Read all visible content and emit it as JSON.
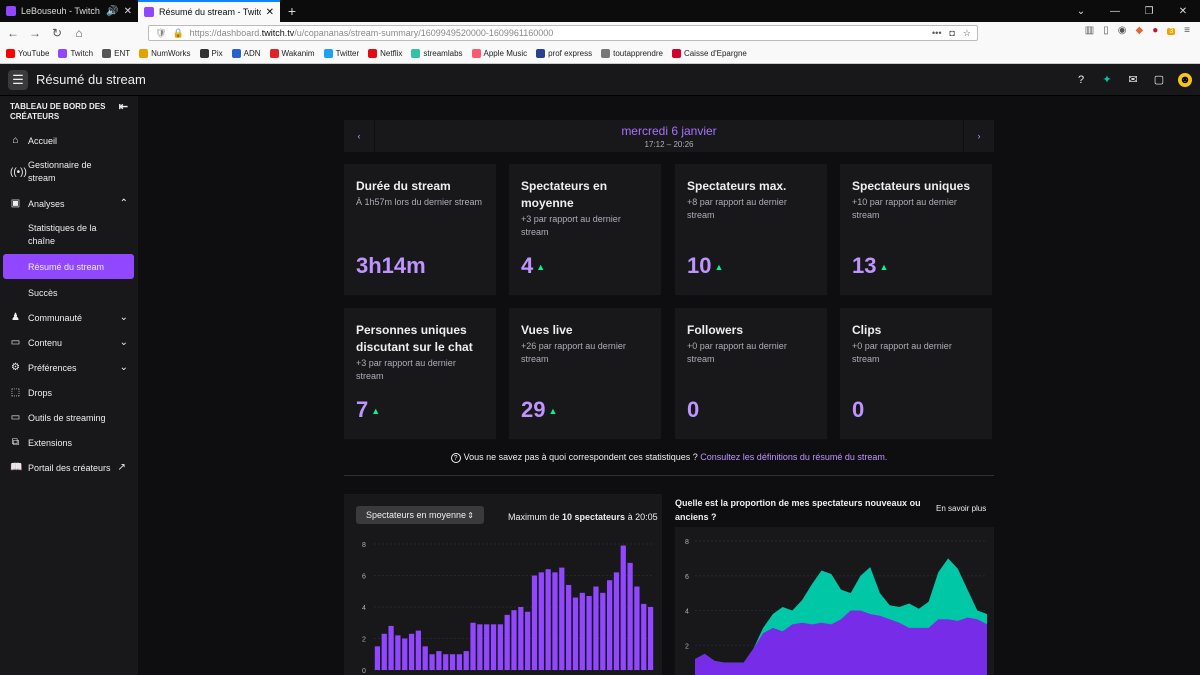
{
  "browser": {
    "tabs": [
      {
        "title": "LeBouseuh - Twitch"
      },
      {
        "title": "Résumé du stream - Twitch"
      }
    ],
    "url": {
      "prefix": "https://dashboard.",
      "host": "twitch.tv",
      "path": "/u/copananas/stream-summary/1609949520000-1609961160000"
    },
    "bookmarks": [
      "YouTube",
      "Twitch",
      "ENT",
      "NumWorks",
      "Pix",
      "ADN",
      "Wakanim",
      "Twitter",
      "Netflix",
      "streamlabs",
      "Apple Music",
      "prof express",
      "toutapprendre",
      "Caisse d'Epargne"
    ],
    "bookmark_colors": [
      "#ff0000",
      "#9147ff",
      "#555555",
      "#e5a100",
      "#333333",
      "#2a62c9",
      "#e02323",
      "#1da1f2",
      "#e50914",
      "#31c3a2",
      "#fa5a6f",
      "#2a3f8f",
      "#777777",
      "#d4002a"
    ],
    "tools_badge": "3"
  },
  "app": {
    "title": "Résumé du stream"
  },
  "sidebar": {
    "header": "TABLEAU DE BORD DES CRÉATEURS",
    "items": [
      {
        "label": "Accueil",
        "icon": "home-icon"
      },
      {
        "label": "Gestionnaire de stream",
        "icon": "broadcast-icon"
      },
      {
        "label": "Analyses",
        "icon": "analytics-icon",
        "expanded": true
      },
      {
        "label": "Communauté",
        "icon": "community-icon"
      },
      {
        "label": "Contenu",
        "icon": "content-icon"
      },
      {
        "label": "Préférences",
        "icon": "gear-icon"
      },
      {
        "label": "Drops",
        "icon": "drops-icon"
      },
      {
        "label": "Outils de streaming",
        "icon": "camera-icon"
      },
      {
        "label": "Extensions",
        "icon": "extensions-icon"
      },
      {
        "label": "Portail des créateurs",
        "icon": "book-icon"
      }
    ],
    "subitems": [
      {
        "label": "Statistiques de la chaîne"
      },
      {
        "label": "Résumé du stream",
        "active": true
      },
      {
        "label": "Succès"
      }
    ]
  },
  "datenav": {
    "date": "mercredi 6 janvier",
    "time": "17:12 – 20:26"
  },
  "stats": [
    {
      "title": "Durée du stream",
      "subtitle": "À 1h57m lors du dernier stream",
      "value": "3h14m",
      "trend_up": false
    },
    {
      "title": "Spectateurs en moyenne",
      "subtitle": "+3 par rapport au dernier stream",
      "value": "4",
      "trend_up": true
    },
    {
      "title": "Spectateurs max.",
      "subtitle": "+8 par rapport au dernier stream",
      "value": "10",
      "trend_up": true
    },
    {
      "title": "Spectateurs uniques",
      "subtitle": "+10 par rapport au dernier stream",
      "value": "13",
      "trend_up": true
    },
    {
      "title": "Personnes uniques discutant sur le chat",
      "subtitle": "+3 par rapport au dernier stream",
      "value": "7",
      "trend_up": true
    },
    {
      "title": "Vues live",
      "subtitle": "+26 par rapport au dernier stream",
      "value": "29",
      "trend_up": true
    },
    {
      "title": "Followers",
      "subtitle": "+0 par rapport au dernier stream",
      "value": "0",
      "trend_up": false
    },
    {
      "title": "Clips",
      "subtitle": "+0 par rapport au dernier stream",
      "value": "0",
      "trend_up": false
    }
  ],
  "help": {
    "text": "Vous ne savez pas à quoi correspondent ces statistiques ?",
    "link": "Consultez les définitions du résumé du stream."
  },
  "viewers_panel": {
    "select_label": "Spectateurs en moyenne",
    "max_prefix": "Maximum de",
    "max_bold": "10 spectateurs",
    "max_suffix": "à 20:05"
  },
  "audience_panel": {
    "question": "Quelle est la proportion de mes spectateurs nouveaux ou anciens ?",
    "learn_more": "En savoir plus"
  },
  "colors": {
    "accent": "#9147ff",
    "accent_light": "#bf94ff",
    "teal": "#00c8a7",
    "up": "#00f593"
  },
  "chart_data": [
    {
      "type": "bar",
      "ylim": [
        0,
        8
      ],
      "yticks": [
        0,
        2,
        4,
        6,
        8
      ],
      "values": [
        1.5,
        2.3,
        2.8,
        2.2,
        2.0,
        2.3,
        2.5,
        1.5,
        1.0,
        1.2,
        1.0,
        1.0,
        1.0,
        1.2,
        3.0,
        2.9,
        2.9,
        2.9,
        2.9,
        3.5,
        3.8,
        4.0,
        3.7,
        6.0,
        6.2,
        6.4,
        6.2,
        6.5,
        5.4,
        4.6,
        4.9,
        4.7,
        5.3,
        4.9,
        5.7,
        6.2,
        7.9,
        6.8,
        5.3,
        4.2,
        4.0
      ],
      "color": "#9147ff"
    },
    {
      "type": "area",
      "ylim": [
        0,
        8
      ],
      "yticks": [
        2,
        4,
        6,
        8
      ],
      "series": [
        {
          "values": [
            1.2,
            1.5,
            1.1,
            1.0,
            1.0,
            1.0,
            1.8,
            2.7,
            3.0,
            2.8,
            3.2,
            3.3,
            3.2,
            3.3,
            3.2,
            3.5,
            4.0,
            4.0,
            3.8,
            3.7,
            3.5,
            3.3,
            3.0,
            3.0,
            3.0,
            3.5,
            3.5,
            3.4,
            3.6,
            3.5,
            3.2
          ],
          "color": "#772ce8"
        },
        {
          "values": [
            1.2,
            1.5,
            1.1,
            1.0,
            1.0,
            1.0,
            1.8,
            3.0,
            3.8,
            4.2,
            4.0,
            4.6,
            5.5,
            6.3,
            6.1,
            5.2,
            5.0,
            6.0,
            6.5,
            5.0,
            4.3,
            4.2,
            4.4,
            4.1,
            4.5,
            6.2,
            7.0,
            6.4,
            5.2,
            4.0,
            3.8
          ],
          "color": "#00c8a7"
        }
      ]
    }
  ]
}
